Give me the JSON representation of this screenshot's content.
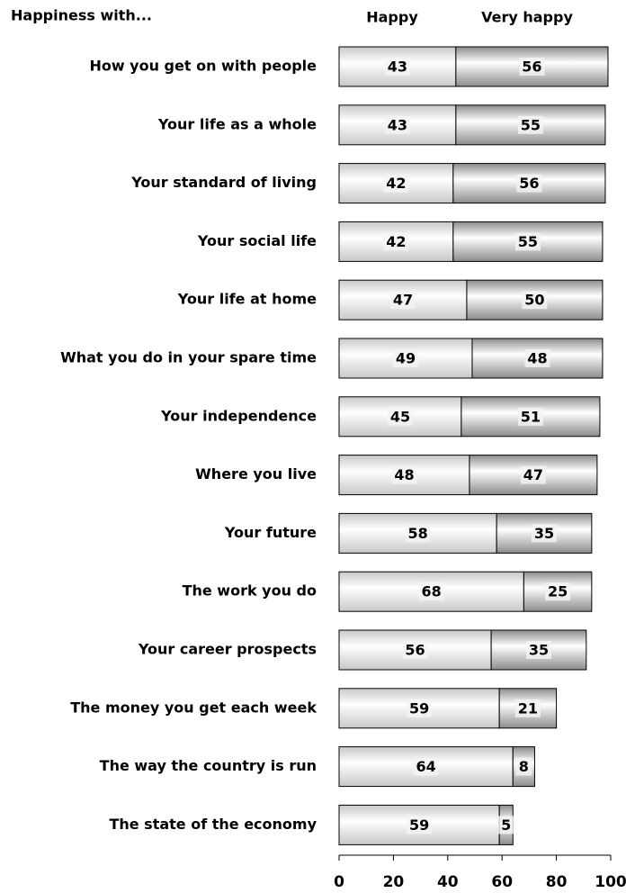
{
  "chart_data": {
    "type": "stacked_bar_horizontal",
    "title": "Happiness with...",
    "categories": [
      "How you get on with people",
      "Your life as a whole",
      "Your standard of living",
      "Your social life",
      "Your life at home",
      "What you do in your spare time",
      "Your independence",
      "Where you live",
      "Your future",
      "The work you do",
      "Your career prospects",
      "The money you get each week",
      "The way the country is run",
      "The state of the economy"
    ],
    "series": [
      {
        "name": "Happy",
        "color": "#c8c8c8",
        "values": [
          43,
          43,
          42,
          42,
          47,
          49,
          45,
          48,
          58,
          68,
          56,
          59,
          64,
          59
        ]
      },
      {
        "name": "Very happy",
        "color": "#8c8c8c",
        "values": [
          56,
          55,
          56,
          55,
          50,
          48,
          51,
          47,
          35,
          25,
          35,
          21,
          8,
          5
        ]
      }
    ],
    "xlim": [
      0,
      100
    ],
    "xticks": [
      0,
      20,
      40,
      60,
      80,
      100
    ]
  }
}
